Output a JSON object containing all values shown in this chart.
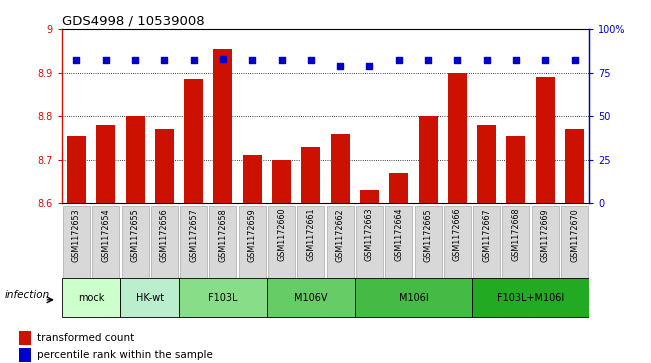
{
  "title": "GDS4998 / 10539008",
  "samples": [
    "GSM1172653",
    "GSM1172654",
    "GSM1172655",
    "GSM1172656",
    "GSM1172657",
    "GSM1172658",
    "GSM1172659",
    "GSM1172660",
    "GSM1172661",
    "GSM1172662",
    "GSM1172663",
    "GSM1172664",
    "GSM1172665",
    "GSM1172666",
    "GSM1172667",
    "GSM1172668",
    "GSM1172669",
    "GSM1172670"
  ],
  "bar_values": [
    8.755,
    8.78,
    8.8,
    8.77,
    8.885,
    8.955,
    8.71,
    8.7,
    8.73,
    8.76,
    8.63,
    8.67,
    8.8,
    8.9,
    8.78,
    8.755,
    8.89,
    8.77
  ],
  "percentile_values": [
    82,
    82,
    82,
    82,
    82,
    83,
    82,
    82,
    82,
    79,
    79,
    82,
    82,
    82,
    82,
    82,
    82,
    82
  ],
  "ylim_left": [
    8.6,
    9.0
  ],
  "ylim_right": [
    0,
    100
  ],
  "bar_color": "#cc1100",
  "dot_color": "#0000cc",
  "yticks_left": [
    8.6,
    8.7,
    8.8,
    8.9,
    9.0
  ],
  "ytick_labels_left": [
    "8.6",
    "8.7",
    "8.8",
    "8.9",
    "9"
  ],
  "yticks_right": [
    0,
    25,
    50,
    75,
    100
  ],
  "ytick_labels_right": [
    "0",
    "25",
    "50",
    "75",
    "100%"
  ],
  "groups": [
    {
      "label": "mock",
      "start": 0,
      "end": 2,
      "color": "#ccffcc"
    },
    {
      "label": "HK-wt",
      "start": 2,
      "end": 4,
      "color": "#bbeecc"
    },
    {
      "label": "F103L",
      "start": 4,
      "end": 7,
      "color": "#88dd88"
    },
    {
      "label": "M106V",
      "start": 7,
      "end": 10,
      "color": "#66cc66"
    },
    {
      "label": "M106I",
      "start": 10,
      "end": 14,
      "color": "#44bb44"
    },
    {
      "label": "F103L+M106I",
      "start": 14,
      "end": 18,
      "color": "#22aa22"
    }
  ],
  "infection_label": "infection",
  "legend_bar_label": "transformed count",
  "legend_dot_label": "percentile rank within the sample",
  "sample_box_color": "#d8d8d8",
  "sample_box_edge": "#999999"
}
